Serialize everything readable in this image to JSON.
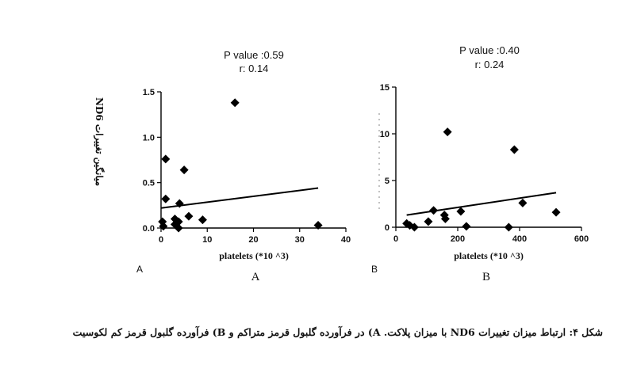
{
  "caption": "شکل ۴: ارتباط میزان تغییرات ND6 با میزان پلاکت. A) در فرآورده گلبول قرمز متراکم و B) فرآورده گلبول قرمز کم لکوسیت",
  "chart_data": [
    {
      "type": "scatter",
      "panel_letter": "A",
      "panel_label": "A",
      "stats": [
        "P value :0.59",
        "r: 0.14"
      ],
      "ylabel": "میانگین تغییرات ND6",
      "xlabel": "platelets (*10 ^3)",
      "xlim": [
        0,
        40
      ],
      "ylim": [
        0,
        1.5
      ],
      "xticks": [
        "0",
        "10",
        "20",
        "30",
        "40"
      ],
      "yticks": [
        "0.0",
        "0.5",
        "1.0",
        "1.5"
      ],
      "grid": false,
      "marker": "diamond",
      "points": [
        {
          "x": 0.3,
          "y": 0.07
        },
        {
          "x": 0.5,
          "y": 0.02
        },
        {
          "x": 1.0,
          "y": 0.76
        },
        {
          "x": 1.0,
          "y": 0.32
        },
        {
          "x": 3.0,
          "y": 0.1
        },
        {
          "x": 3.0,
          "y": 0.04
        },
        {
          "x": 3.8,
          "y": 0.0
        },
        {
          "x": 3.8,
          "y": 0.07
        },
        {
          "x": 4.0,
          "y": 0.27
        },
        {
          "x": 5.0,
          "y": 0.64
        },
        {
          "x": 6.0,
          "y": 0.13
        },
        {
          "x": 9.0,
          "y": 0.09
        },
        {
          "x": 16.0,
          "y": 1.38
        },
        {
          "x": 34.0,
          "y": 0.03
        }
      ],
      "fit_line": [
        {
          "x": 0,
          "y": 0.22
        },
        {
          "x": 34,
          "y": 0.44
        }
      ]
    },
    {
      "type": "scatter",
      "panel_letter": "B",
      "panel_label": "B",
      "stats": [
        "P value :0.40",
        "r: 0.24"
      ],
      "xlabel": "platelets (*10 ^3)",
      "xlim": [
        0,
        600
      ],
      "ylim": [
        0,
        15
      ],
      "xticks": [
        "0",
        "200",
        "400",
        "600"
      ],
      "yticks": [
        "0",
        "5",
        "10",
        "15"
      ],
      "grid": false,
      "marker": "diamond",
      "points": [
        {
          "x": 35,
          "y": 0.4
        },
        {
          "x": 45,
          "y": 0.2
        },
        {
          "x": 60,
          "y": 0.0
        },
        {
          "x": 105,
          "y": 0.6
        },
        {
          "x": 122,
          "y": 1.8
        },
        {
          "x": 157,
          "y": 1.3
        },
        {
          "x": 160,
          "y": 0.9
        },
        {
          "x": 167,
          "y": 10.2
        },
        {
          "x": 210,
          "y": 1.7
        },
        {
          "x": 228,
          "y": 0.1
        },
        {
          "x": 365,
          "y": 0.0
        },
        {
          "x": 383,
          "y": 8.3
        },
        {
          "x": 410,
          "y": 2.6
        },
        {
          "x": 518,
          "y": 1.6
        }
      ],
      "fit_line": [
        {
          "x": 35,
          "y": 1.3
        },
        {
          "x": 518,
          "y": 3.7
        }
      ]
    }
  ]
}
